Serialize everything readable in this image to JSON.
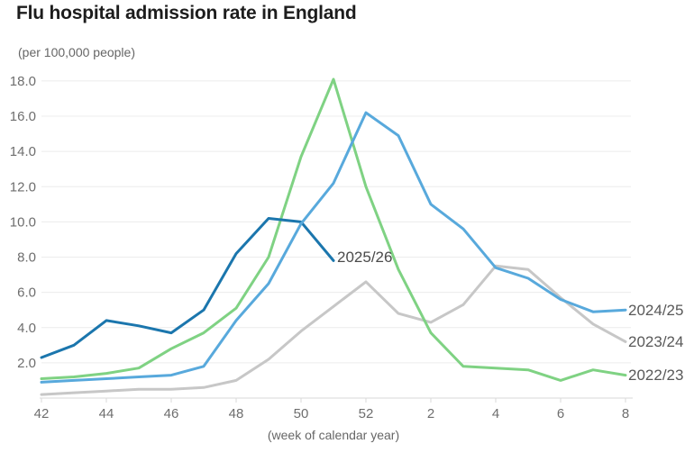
{
  "title": "Flu hospital admission rate in England",
  "subtitle": "(per 100,000 people)",
  "x_axis_caption": "(week of calendar year)",
  "colors": {
    "season_2025_26": "#1b76ad",
    "season_2024_25": "#58a9dc",
    "season_2023_24": "#c7c7c7",
    "season_2022_23": "#7fd283",
    "grid": "#ececec",
    "axis": "#d9d9d9",
    "tick_text": "#6e6e6e",
    "label_text": "#595959"
  },
  "chart_data": {
    "type": "line",
    "x": [
      42,
      43,
      44,
      45,
      46,
      47,
      48,
      49,
      50,
      51,
      52,
      1,
      2,
      3,
      4,
      5,
      6,
      7,
      8
    ],
    "x_tick_labels": [
      "42",
      "44",
      "46",
      "48",
      "50",
      "52",
      "2",
      "4",
      "6",
      "8"
    ],
    "y_ticks": [
      2,
      4,
      6,
      8,
      10,
      12,
      14,
      16,
      18
    ],
    "y_tick_labels": [
      "2.0",
      "4.0",
      "6.0",
      "8.0",
      "10.0",
      "12.0",
      "14.0",
      "16.0",
      "18.0"
    ],
    "ylim": [
      0,
      18.5
    ],
    "grid": true,
    "legend_position": "right-edge-labels",
    "series": [
      {
        "name": "2023/24",
        "color": "#c7c7c7",
        "values": [
          0.2,
          0.3,
          0.4,
          0.5,
          0.5,
          0.6,
          1.0,
          2.2,
          3.8,
          5.2,
          6.6,
          4.8,
          4.3,
          5.3,
          7.5,
          7.3,
          5.7,
          4.2,
          3.2
        ]
      },
      {
        "name": "2022/23",
        "color": "#7fd283",
        "values": [
          1.1,
          1.2,
          1.4,
          1.7,
          2.8,
          3.7,
          5.1,
          8.0,
          13.7,
          18.1,
          12.0,
          7.3,
          3.7,
          1.8,
          1.7,
          1.6,
          1.0,
          1.6,
          1.3
        ]
      },
      {
        "name": "2025/26",
        "color": "#1b76ad",
        "values": [
          2.3,
          3.0,
          4.4,
          4.1,
          3.7,
          5.0,
          8.2,
          10.2,
          10.0,
          7.8,
          null,
          null,
          null,
          null,
          null,
          null,
          null,
          null,
          null
        ]
      },
      {
        "name": "2024/25",
        "color": "#58a9dc",
        "values": [
          0.9,
          1.0,
          1.1,
          1.2,
          1.3,
          1.8,
          4.4,
          6.5,
          9.9,
          12.2,
          16.2,
          14.9,
          11.0,
          9.6,
          7.4,
          6.8,
          5.6,
          4.9,
          5.0
        ]
      }
    ]
  }
}
